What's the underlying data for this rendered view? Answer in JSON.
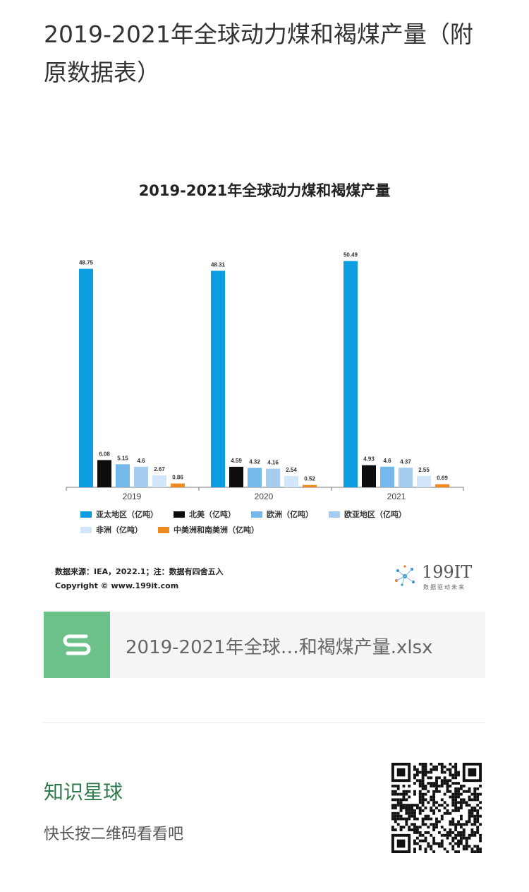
{
  "article": {
    "title": "2019-2021年全球动力煤和褐煤产量（附原数据表）"
  },
  "chart_data": {
    "type": "bar",
    "title": "2019-2021年全球动力煤和褐煤产量",
    "categories": [
      "2019",
      "2020",
      "2021"
    ],
    "series": [
      {
        "name": "亚太地区（亿吨）",
        "color": "#0b9de0",
        "values": [
          48.75,
          48.31,
          50.49
        ]
      },
      {
        "name": "北美（亿吨）",
        "color": "#0d0d0d",
        "values": [
          6.08,
          4.59,
          4.93
        ]
      },
      {
        "name": "欧洲（亿吨）",
        "color": "#74b8ec",
        "values": [
          5.15,
          4.32,
          4.6
        ]
      },
      {
        "name": "欧亚地区（亿吨）",
        "color": "#a6cdf0",
        "values": [
          4.6,
          4.16,
          4.37
        ]
      },
      {
        "name": "非洲（亿吨）",
        "color": "#d1e6f8",
        "values": [
          2.67,
          2.54,
          2.55
        ]
      },
      {
        "name": "中美洲和南美洲（亿吨）",
        "color": "#f08a1e",
        "values": [
          0.86,
          0.52,
          0.69
        ]
      }
    ],
    "ylim": [
      0,
      52
    ],
    "legend": "bottom",
    "grid": false
  },
  "source": {
    "line1": "数据来源：IEA，2022.1；注：数据有四舍五入",
    "line2": "Copyright © www.199it.com"
  },
  "logo": {
    "name": "199IT",
    "tagline": "数据驱动未来"
  },
  "file": {
    "icon_letter": "S",
    "name": "2019-2021年全球…和褐煤产量.xlsx"
  },
  "footer": {
    "title": "知识星球",
    "subtitle": "快长按二维码看看吧"
  }
}
